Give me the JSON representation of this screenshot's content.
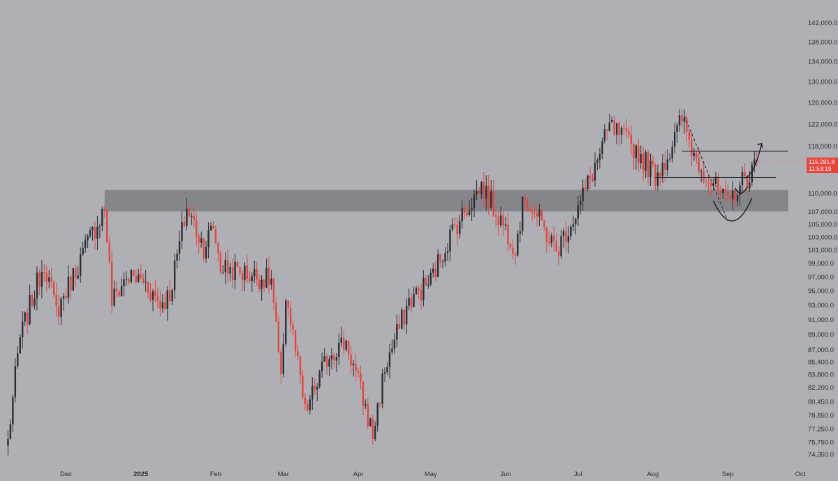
{
  "chart_data": {
    "type": "candlestick",
    "title": "",
    "xlabel": "",
    "ylabel": "",
    "price_axis": {
      "ticks": [
        142000,
        138000,
        134000,
        130000,
        126000,
        122000,
        118000,
        110000,
        107000,
        105000,
        103000,
        101000,
        99000,
        97000,
        95000,
        93000,
        91000,
        89000,
        87000,
        85400,
        83800,
        82200,
        80450,
        78850,
        77250,
        75750,
        74350
      ],
      "tick_labels": [
        "142,000.0",
        "138,000.0",
        "134,000.0",
        "130,000.0",
        "126,000.0",
        "122,000.0",
        "118,000.0",
        "110,000.0",
        "107,000.0",
        "105,000.0",
        "103,000.0",
        "101,000.0",
        "99,000.0",
        "97,000.0",
        "95,000.0",
        "93,000.0",
        "91,000.0",
        "89,000.0",
        "87,000.0",
        "85,400.0",
        "83,800.0",
        "82,200.0",
        "80,450.0",
        "78,850.0",
        "77,250.0",
        "75,750.0",
        "74,350.0"
      ],
      "scale": "log",
      "ylim": [
        73700,
        146000
      ]
    },
    "time_axis": {
      "labels": [
        "Dec",
        "2025",
        "Feb",
        "Mar",
        "Apr",
        "May",
        "Jun",
        "Jul",
        "Aug",
        "Sep",
        "Oct"
      ],
      "bold": [
        false,
        true,
        false,
        false,
        false,
        false,
        false,
        false,
        false,
        false,
        false
      ],
      "dates": [
        "2024-12-01",
        "2025-01-01",
        "2025-02-01",
        "2025-03-01",
        "2025-04-01",
        "2025-05-01",
        "2025-06-01",
        "2025-07-01",
        "2025-08-01",
        "2025-09-01",
        "2025-10-01"
      ]
    },
    "last_price": {
      "value": 115281.8,
      "label": "115,281.8",
      "countdown": "11:53:19",
      "color": "#e8443a"
    },
    "colors": {
      "up": "#2b2d31",
      "down": "#e8443a",
      "zone": "#7d7f85",
      "background": "#aeb0b6"
    },
    "anchors": [
      [
        "2024-11-07",
        75800
      ],
      [
        "2024-11-12",
        88500
      ],
      [
        "2024-11-22",
        99200
      ],
      [
        "2024-11-27",
        92000
      ],
      [
        "2024-12-05",
        98000
      ],
      [
        "2024-12-17",
        107600
      ],
      [
        "2024-12-20",
        93500
      ],
      [
        "2024-12-26",
        97000
      ],
      [
        "2025-01-02",
        96500
      ],
      [
        "2025-01-09",
        93200
      ],
      [
        "2025-01-13",
        94500
      ],
      [
        "2025-01-20",
        107500
      ],
      [
        "2025-01-27",
        101500
      ],
      [
        "2025-01-31",
        104500
      ],
      [
        "2025-02-03",
        98500
      ],
      [
        "2025-02-24",
        96500
      ],
      [
        "2025-02-28",
        82500
      ],
      [
        "2025-03-02",
        94500
      ],
      [
        "2025-03-10",
        79000
      ],
      [
        "2025-03-20",
        86500
      ],
      [
        "2025-03-27",
        88000
      ],
      [
        "2025-04-07",
        76500
      ],
      [
        "2025-04-12",
        84500
      ],
      [
        "2025-04-22",
        93500
      ],
      [
        "2025-05-01",
        96500
      ],
      [
        "2025-05-10",
        104000
      ],
      [
        "2025-05-22",
        111200
      ],
      [
        "2025-06-05",
        101500
      ],
      [
        "2025-06-09",
        109500
      ],
      [
        "2025-06-22",
        100800
      ],
      [
        "2025-07-01",
        107500
      ],
      [
        "2025-07-10",
        116500
      ],
      [
        "2025-07-14",
        121500
      ],
      [
        "2025-07-24",
        117800
      ],
      [
        "2025-08-02",
        113000
      ],
      [
        "2025-08-08",
        117000
      ],
      [
        "2025-08-13",
        123000
      ],
      [
        "2025-08-18",
        116500
      ],
      [
        "2025-08-24",
        112500
      ],
      [
        "2025-09-01",
        108000
      ],
      [
        "2025-09-05",
        111000
      ],
      [
        "2025-09-10",
        113000
      ],
      [
        "2025-09-13",
        115300
      ]
    ],
    "zone": {
      "low": 107000,
      "high": 110500,
      "from": "2024-12-17",
      "to": "2025-09-26"
    },
    "resistance_line": {
      "value": 117100,
      "from": "2025-08-13",
      "to": "2025-09-26"
    },
    "support_line": {
      "value": 112600,
      "from": "2025-08-02",
      "to": "2025-09-21"
    },
    "downtrend_line": {
      "from": [
        "2025-08-14",
        123500
      ],
      "to": [
        "2025-09-01",
        105500
      ],
      "style": "dashed"
    },
    "projection": {
      "from": [
        "2025-09-08",
        112500
      ],
      "to": [
        "2025-09-15",
        118500
      ]
    }
  }
}
